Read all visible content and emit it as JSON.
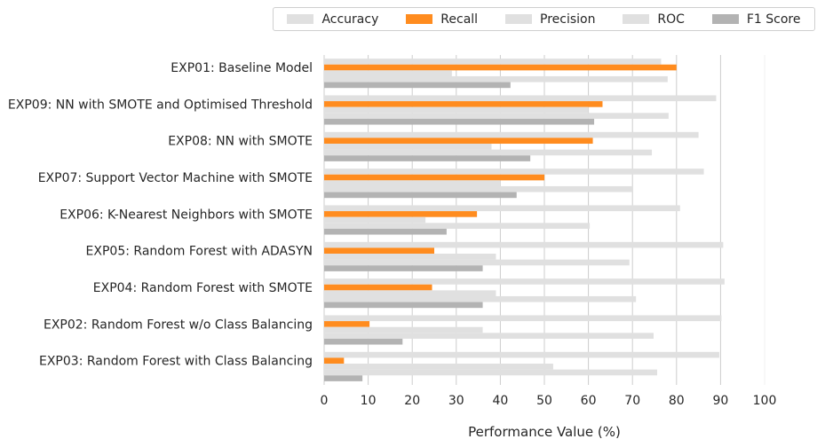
{
  "chart_data": {
    "type": "bar",
    "orientation": "horizontal",
    "xlabel": "Performance Value (%)",
    "xlim": [
      0,
      100
    ],
    "xticks": [
      0,
      10,
      20,
      30,
      40,
      50,
      60,
      70,
      80,
      90,
      100
    ],
    "grid": "vertical",
    "legend_position": "top",
    "categories": [
      "EXP01: Baseline Model",
      "EXP09: NN with SMOTE and Optimised Threshold",
      "EXP08: NN with SMOTE",
      "EXP07: Support Vector Machine with SMOTE",
      "EXP06: K-Nearest Neighbors with SMOTE",
      "EXP05: Random Forest with ADASYN",
      "EXP04: Random Forest with SMOTE",
      "EXP02: Random Forest w/o Class Balancing",
      "EXP03: Random Forest with Class Balancing"
    ],
    "series": [
      {
        "name": "Accuracy",
        "color": "#e0e0e0",
        "values": [
          76.5,
          89.0,
          85.0,
          86.2,
          80.8,
          90.6,
          90.9,
          90.2,
          89.7
        ]
      },
      {
        "name": "Recall",
        "color": "#ff8c1f",
        "values": [
          80.0,
          63.2,
          61.0,
          50.0,
          34.7,
          25.0,
          24.5,
          10.3,
          4.5
        ]
      },
      {
        "name": "Precision",
        "color": "#e0e0e0",
        "values": [
          29.0,
          60.0,
          38.0,
          40.0,
          23.0,
          39.0,
          39.0,
          36.0,
          52.0
        ]
      },
      {
        "name": "ROC",
        "color": "#e0e0e0",
        "values": [
          78.0,
          78.2,
          74.4,
          70.0,
          60.3,
          69.3,
          70.8,
          74.8,
          75.6
        ]
      },
      {
        "name": "F1 Score",
        "color": "#b3b3b3",
        "values": [
          42.3,
          61.3,
          46.8,
          43.7,
          27.8,
          36.0,
          36.0,
          17.8,
          8.7
        ]
      }
    ]
  }
}
